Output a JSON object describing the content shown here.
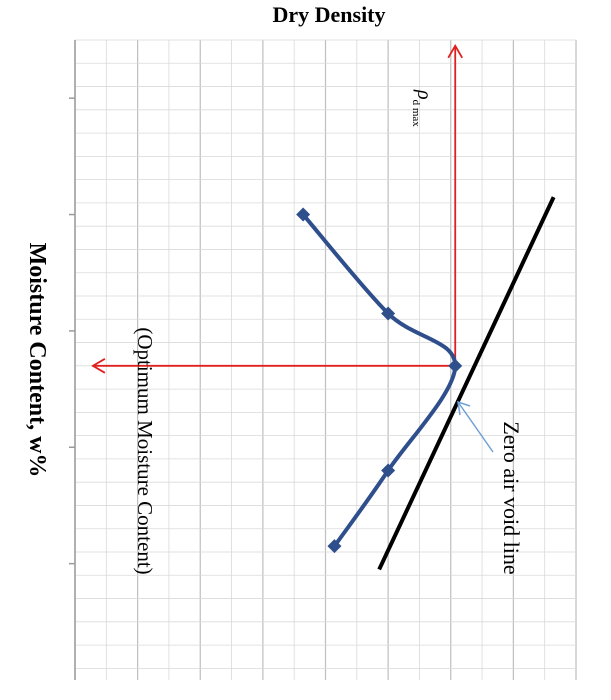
{
  "chart_data": {
    "type": "line",
    "title": "Dry Density",
    "xlabel": "Moisture Content, w%",
    "ylabel": "",
    "series": [
      {
        "values": [
          {
            "w": 1.0,
            "rho": 0.45
          },
          {
            "w": 1.85,
            "rho": 1.4
          },
          {
            "w": 2.3,
            "rho": 2.15
          },
          {
            "w": 3.2,
            "rho": 1.4
          },
          {
            "w": 3.85,
            "rho": 0.8
          }
        ]
      }
    ],
    "zero_air_void_line": {
      "label": "Zero air void line",
      "points": [
        {
          "w": 0.85,
          "rho": 3.25
        },
        {
          "w": 4.05,
          "rho": 1.3
        }
      ]
    },
    "max_dry_density": {
      "symbol": "ρ",
      "subscript": "d max",
      "rho": 2.15
    },
    "optimum_moisture": {
      "label": "(Optimum Moisture Content)",
      "w": 2.3
    },
    "axis_ranges": {
      "w": [
        -0.5,
        5.0
      ],
      "rho": [
        -2.1,
        3.5
      ]
    },
    "grid": true,
    "colors": {
      "curve": "#2F4E8C",
      "zav": "#000000",
      "guides": "#E02020",
      "grid": "#BFBFBF",
      "zav_pointer": "#6FA0D8"
    }
  }
}
